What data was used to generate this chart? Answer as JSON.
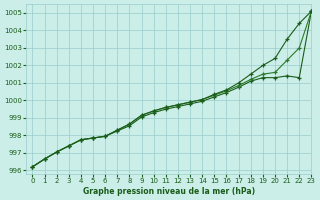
{
  "title": "Graphe pression niveau de la mer (hPa)",
  "xlim": [
    -0.5,
    23
  ],
  "ylim": [
    995.8,
    1005.5
  ],
  "yticks": [
    996,
    997,
    998,
    999,
    1000,
    1001,
    1002,
    1003,
    1004,
    1005
  ],
  "xticks": [
    0,
    1,
    2,
    3,
    4,
    5,
    6,
    7,
    8,
    9,
    10,
    11,
    12,
    13,
    14,
    15,
    16,
    17,
    18,
    19,
    20,
    21,
    22,
    23
  ],
  "background_color": "#cceee8",
  "grid_color": "#99cccc",
  "line_color_dark": "#1a5c1a",
  "line_color_mid": "#2a7a2a",
  "series": [
    [
      996.2,
      996.65,
      997.05,
      997.4,
      997.75,
      997.85,
      997.95,
      998.25,
      998.55,
      999.05,
      999.3,
      999.5,
      999.65,
      999.8,
      999.95,
      1000.2,
      1000.45,
      1000.75,
      1001.1,
      1001.3,
      1001.3,
      1001.4,
      1001.3,
      1005.1
    ],
    [
      996.2,
      996.65,
      997.05,
      997.4,
      997.75,
      997.85,
      997.95,
      998.3,
      998.65,
      999.15,
      999.4,
      999.6,
      999.75,
      999.9,
      1000.05,
      1000.3,
      1000.55,
      1000.85,
      1001.2,
      1001.5,
      1001.6,
      1002.3,
      1003.0,
      1005.1
    ],
    [
      996.2,
      996.65,
      997.05,
      997.4,
      997.75,
      997.85,
      997.95,
      998.3,
      998.65,
      999.15,
      999.4,
      999.6,
      999.75,
      999.9,
      1000.05,
      1000.35,
      1000.6,
      1001.0,
      1001.5,
      1002.0,
      1002.4,
      1003.5,
      1004.4,
      1005.1
    ]
  ]
}
